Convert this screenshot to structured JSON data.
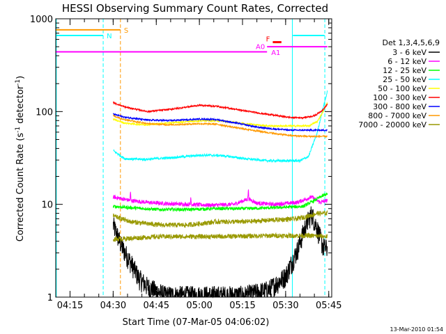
{
  "chart_data": {
    "type": "line",
    "title": "HESSI Observing Summary Count Rates, Corrected",
    "xlabel": "Start Time (07-Mar-05 04:06:02)",
    "ylabel_main": "Corrected Count Rate (s",
    "ylabel_exp1": "-1",
    "ylabel_mid": " detector",
    "ylabel_exp2": "-1",
    "ylabel_end": ")",
    "timestamp": "13-Mar-2010 01:54",
    "y_scale": "log",
    "ylim": [
      1,
      1000
    ],
    "xlim_minutes": [
      4.0,
      100.0
    ],
    "x_ticks": [
      {
        "label": "04:15",
        "minutes": 8.97
      },
      {
        "label": "04:30",
        "minutes": 23.97
      },
      {
        "label": "04:45",
        "minutes": 38.97
      },
      {
        "label": "05:00",
        "minutes": 53.97
      },
      {
        "label": "05:15",
        "minutes": 68.97
      },
      {
        "label": "05:30",
        "minutes": 83.97
      },
      {
        "label": "05:45",
        "minutes": 98.97
      }
    ],
    "y_ticks": [
      {
        "label": "1",
        "value": 1
      },
      {
        "label": "10",
        "value": 10
      },
      {
        "label": "100",
        "value": 100
      },
      {
        "label": "1000",
        "value": 1000
      }
    ],
    "legend": {
      "header": "Det 1,3,4,5,6,9",
      "placement": "right"
    },
    "series": [
      {
        "name": "3 - 6 keV",
        "color": "#000000",
        "key": [
          [
            24,
            6
          ],
          [
            27,
            3.5
          ],
          [
            30,
            2.4
          ],
          [
            33,
            1.6
          ],
          [
            36,
            1.3
          ],
          [
            42,
            1.05
          ],
          [
            55,
            1.05
          ],
          [
            70,
            1.05
          ],
          [
            78,
            1.2
          ],
          [
            84,
            1.7
          ],
          [
            88,
            3.2
          ],
          [
            91,
            6
          ],
          [
            93,
            8
          ],
          [
            95,
            5.5
          ],
          [
            97,
            3.5
          ],
          [
            98.5,
            3.3
          ]
        ],
        "noise": 0.26,
        "floor": 1.0
      },
      {
        "name": "6 - 12 keV",
        "color": "#ff00ff",
        "key": [
          [
            24,
            12
          ],
          [
            30,
            11
          ],
          [
            36,
            10.5
          ],
          [
            42,
            10.2
          ],
          [
            50,
            10
          ],
          [
            58,
            9.8
          ],
          [
            66,
            10
          ],
          [
            71,
            11.5
          ],
          [
            74,
            10.3
          ],
          [
            80,
            10
          ],
          [
            88,
            10.5
          ],
          [
            93,
            12
          ],
          [
            96,
            10.5
          ],
          [
            98.5,
            11
          ]
        ],
        "noise": 0.05,
        "spikes": [
          [
            30,
            13.5
          ],
          [
            51,
            12.3
          ],
          [
            71,
            14.5
          ]
        ]
      },
      {
        "name": "12 - 25 keV",
        "color": "#00ff00",
        "key": [
          [
            24,
            9.5
          ],
          [
            30,
            9.2
          ],
          [
            40,
            8.8
          ],
          [
            50,
            8.8
          ],
          [
            60,
            9
          ],
          [
            70,
            9
          ],
          [
            80,
            9.2
          ],
          [
            90,
            9.5
          ],
          [
            94,
            11
          ],
          [
            96,
            12
          ],
          [
            98.5,
            13
          ]
        ],
        "noise": 0.04
      },
      {
        "name": "25 - 50 keV",
        "color": "#00ffff",
        "key": [
          [
            24,
            38
          ],
          [
            28,
            31
          ],
          [
            35,
            30.5
          ],
          [
            45,
            32
          ],
          [
            55,
            34
          ],
          [
            62,
            33.5
          ],
          [
            70,
            31
          ],
          [
            78,
            29.5
          ],
          [
            89,
            29.5
          ],
          [
            92,
            33
          ],
          [
            95,
            60
          ],
          [
            97,
            110
          ],
          [
            98.5,
            165
          ]
        ],
        "noise": 0.03
      },
      {
        "name": "50 - 100 keV",
        "color": "#ffff00",
        "key": [
          [
            24,
            83
          ],
          [
            28,
            75
          ],
          [
            35,
            72
          ],
          [
            45,
            76
          ],
          [
            55,
            80
          ],
          [
            62,
            79
          ],
          [
            70,
            74
          ],
          [
            78,
            70
          ],
          [
            89,
            70
          ],
          [
            92,
            70
          ],
          [
            95,
            78
          ],
          [
            97,
            100
          ],
          [
            98.5,
            125
          ]
        ],
        "noise": 0.02
      },
      {
        "name": "100 - 300 keV",
        "color": "#ff0000",
        "key": [
          [
            24,
            125
          ],
          [
            28,
            112
          ],
          [
            36,
            100
          ],
          [
            44,
            106
          ],
          [
            54,
            117
          ],
          [
            60,
            114
          ],
          [
            68,
            104
          ],
          [
            76,
            95
          ],
          [
            86,
            86
          ],
          [
            90,
            86
          ],
          [
            94,
            90
          ],
          [
            97,
            105
          ],
          [
            98.5,
            120
          ]
        ],
        "noise": 0.02
      },
      {
        "name": "300 - 800 keV",
        "color": "#0000ff",
        "key": [
          [
            24,
            94
          ],
          [
            28,
            87
          ],
          [
            36,
            81
          ],
          [
            44,
            80
          ],
          [
            54,
            83
          ],
          [
            60,
            82
          ],
          [
            68,
            74
          ],
          [
            74,
            68
          ],
          [
            80,
            65
          ],
          [
            86,
            63
          ],
          [
            92,
            63
          ],
          [
            98.5,
            63
          ]
        ],
        "noise": 0.02
      },
      {
        "name": "800 - 7000 keV",
        "color": "#ff9900",
        "key": [
          [
            24,
            90
          ],
          [
            28,
            82
          ],
          [
            36,
            74
          ],
          [
            44,
            72
          ],
          [
            54,
            74
          ],
          [
            60,
            73
          ],
          [
            68,
            66
          ],
          [
            74,
            62
          ],
          [
            80,
            58
          ],
          [
            86,
            55
          ],
          [
            92,
            54
          ],
          [
            98.5,
            54
          ]
        ],
        "noise": 0.02
      },
      {
        "name": "7000 - 20000 keV",
        "color": "#999900",
        "key": [
          [
            24,
            7.5
          ],
          [
            30,
            6.5
          ],
          [
            40,
            6
          ],
          [
            50,
            6
          ],
          [
            60,
            6.5
          ],
          [
            70,
            6.5
          ],
          [
            80,
            6.8
          ],
          [
            88,
            7
          ],
          [
            92,
            7.5
          ],
          [
            95,
            8
          ],
          [
            98.5,
            8
          ]
        ],
        "noise": 0.06,
        "lower_band": [
          [
            24,
            4.2
          ],
          [
            40,
            4.5
          ],
          [
            60,
            4.5
          ],
          [
            80,
            4.6
          ],
          [
            92,
            4.6
          ],
          [
            98.5,
            4.5
          ]
        ]
      }
    ],
    "annotations": {
      "bars": [
        {
          "label": "S",
          "color": "#ff9900",
          "x0": 4.0,
          "x1": 26.5,
          "y": 760,
          "label_pos": "right"
        },
        {
          "label": "N",
          "color": "#00ffff",
          "x0": 4.0,
          "x1": 20.5,
          "y": 660,
          "label_pos": "right"
        },
        {
          "label": "",
          "color": "#00ffff",
          "x0": 86.5,
          "x1": 97.5,
          "y": 660,
          "label_pos": "none"
        },
        {
          "label": "A0",
          "color": "#ff00ff",
          "x0": 4.0,
          "x1": 77.5,
          "y": 440,
          "label_pos": "end-left"
        },
        {
          "label": "A1",
          "color": "#ff00ff",
          "x0": 77.5,
          "x1": 98.5,
          "y": 500,
          "label_pos": "start-below"
        },
        {
          "label": "F",
          "color": "#ff0000",
          "x0": 79.5,
          "x1": 82.5,
          "y": 560,
          "label_pos": "left"
        }
      ],
      "vlines": [
        {
          "minutes": 4.2,
          "color": "#00ffff",
          "style": "solid"
        },
        {
          "minutes": 20.5,
          "color": "#00ffff",
          "style": "dashed"
        },
        {
          "minutes": 26.5,
          "color": "#ff9900",
          "style": "dashed"
        },
        {
          "minutes": 86.3,
          "color": "#00ffff",
          "style": "solid"
        },
        {
          "minutes": 97.6,
          "color": "#00ffff",
          "style": "dashed"
        }
      ]
    }
  }
}
